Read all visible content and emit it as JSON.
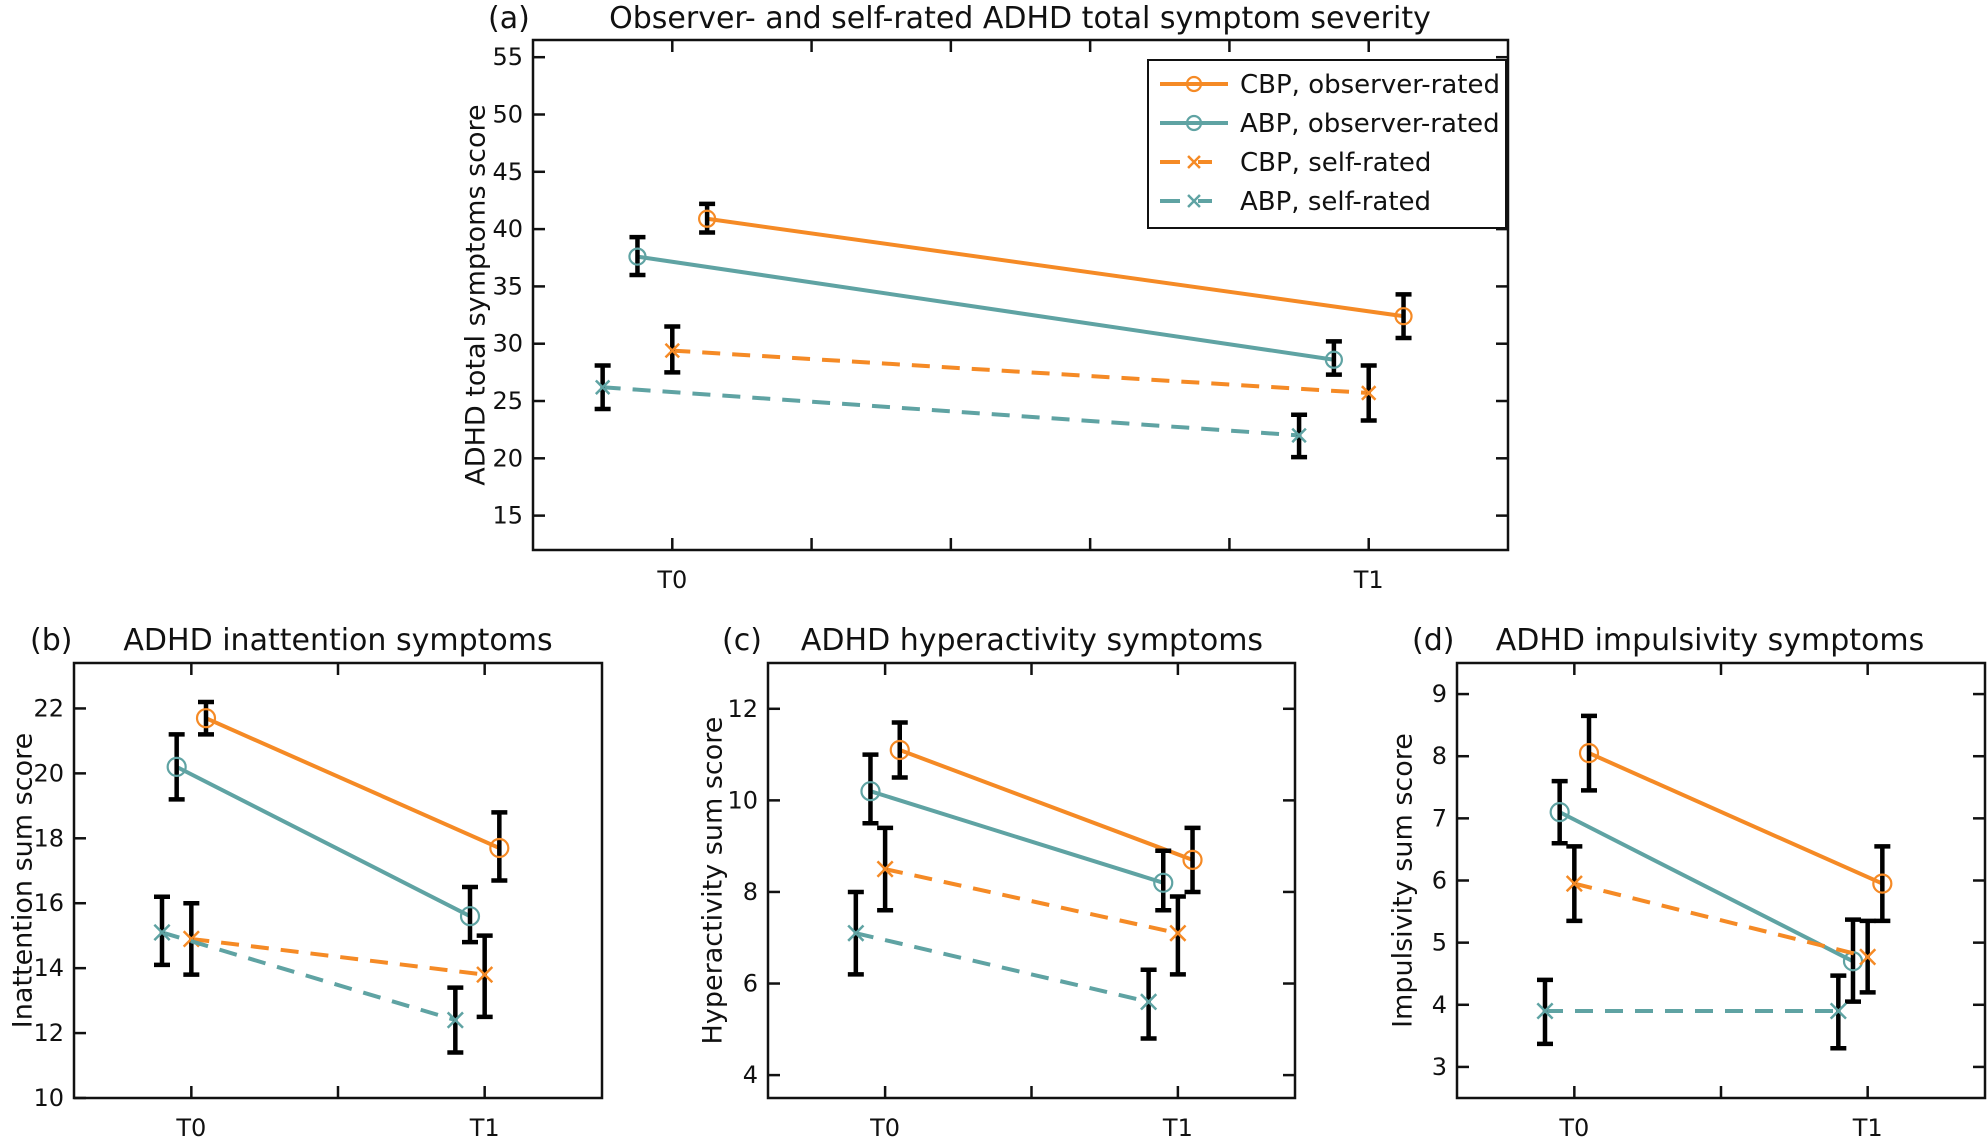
{
  "colors": {
    "CBP": "#F58A25",
    "ABP": "#5FA3A3",
    "errorbar": "#000000"
  },
  "legend": [
    {
      "label": "CBP, observer-rated",
      "group": "CBP",
      "rating": "observer",
      "marker": "circle",
      "line": "solid"
    },
    {
      "label": "ABP, observer-rated",
      "group": "ABP",
      "rating": "observer",
      "marker": "circle",
      "line": "solid"
    },
    {
      "label": "CBP, self-rated",
      "group": "CBP",
      "rating": "self",
      "marker": "x",
      "line": "dashed"
    },
    {
      "label": "ABP, self-rated",
      "group": "ABP",
      "rating": "self",
      "marker": "x",
      "line": "dashed"
    }
  ],
  "chart_data": [
    {
      "panel": "(a)",
      "type": "line",
      "title": "Observer- and self-rated ADHD total symptom severity",
      "xlabel": "",
      "ylabel": "ADHD total symptoms score",
      "categories": [
        "T0",
        "T1"
      ],
      "x_minor_ticks": 4,
      "ylim": [
        12,
        56.5
      ],
      "yticks": [
        15,
        20,
        25,
        30,
        35,
        40,
        45,
        50,
        55
      ],
      "legend_position": "top-right",
      "series": [
        {
          "name": "CBP, observer-rated",
          "values": [
            40.9,
            32.4
          ],
          "ci_low": [
            39.7,
            30.5
          ],
          "ci_high": [
            42.2,
            34.3
          ]
        },
        {
          "name": "ABP, observer-rated",
          "values": [
            37.6,
            28.6
          ],
          "ci_low": [
            36.0,
            27.3
          ],
          "ci_high": [
            39.3,
            30.2
          ]
        },
        {
          "name": "CBP, self-rated",
          "values": [
            29.4,
            25.7
          ],
          "ci_low": [
            27.5,
            23.3
          ],
          "ci_high": [
            31.5,
            28.1
          ]
        },
        {
          "name": "ABP, self-rated",
          "values": [
            26.2,
            22.0
          ],
          "ci_low": [
            24.3,
            20.1
          ],
          "ci_high": [
            28.1,
            23.8
          ]
        }
      ]
    },
    {
      "panel": "(b)",
      "type": "line",
      "title": "ADHD inattention symptoms",
      "xlabel": "",
      "ylabel": "Inattention sum score",
      "categories": [
        "T0",
        "T1"
      ],
      "x_minor_ticks": 1,
      "ylim": [
        10,
        23.4
      ],
      "yticks": [
        10,
        12,
        14,
        16,
        18,
        20,
        22
      ],
      "series": [
        {
          "name": "CBP, observer-rated",
          "values": [
            21.7,
            17.7
          ],
          "ci_low": [
            21.2,
            16.7
          ],
          "ci_high": [
            22.2,
            18.8
          ]
        },
        {
          "name": "ABP, observer-rated",
          "values": [
            20.2,
            15.6
          ],
          "ci_low": [
            19.2,
            14.8
          ],
          "ci_high": [
            21.2,
            16.5
          ]
        },
        {
          "name": "CBP, self-rated",
          "values": [
            14.9,
            13.8
          ],
          "ci_low": [
            13.8,
            12.5
          ],
          "ci_high": [
            16.0,
            15.0
          ]
        },
        {
          "name": "ABP, self-rated",
          "values": [
            15.1,
            12.4
          ],
          "ci_low": [
            14.1,
            11.4
          ],
          "ci_high": [
            16.2,
            13.4
          ]
        }
      ]
    },
    {
      "panel": "(c)",
      "type": "line",
      "title": "ADHD hyperactivity symptoms",
      "xlabel": "",
      "ylabel": "Hyperactivity sum score",
      "categories": [
        "T0",
        "T1"
      ],
      "x_minor_ticks": 1,
      "ylim": [
        3.5,
        13.0
      ],
      "yticks": [
        4,
        6,
        8,
        10,
        12
      ],
      "series": [
        {
          "name": "CBP, observer-rated",
          "values": [
            11.1,
            8.7
          ],
          "ci_low": [
            10.5,
            8.0
          ],
          "ci_high": [
            11.7,
            9.4
          ]
        },
        {
          "name": "ABP, observer-rated",
          "values": [
            10.2,
            8.2
          ],
          "ci_low": [
            9.5,
            7.6
          ],
          "ci_high": [
            11.0,
            8.9
          ]
        },
        {
          "name": "CBP, self-rated",
          "values": [
            8.5,
            7.1
          ],
          "ci_low": [
            7.6,
            6.2
          ],
          "ci_high": [
            9.4,
            7.9
          ]
        },
        {
          "name": "ABP, self-rated",
          "values": [
            7.1,
            5.6
          ],
          "ci_low": [
            6.2,
            4.8
          ],
          "ci_high": [
            8.0,
            6.3
          ]
        }
      ]
    },
    {
      "panel": "(d)",
      "type": "line",
      "title": "ADHD impulsivity symptoms",
      "xlabel": "",
      "ylabel": "Impulsivity sum score",
      "categories": [
        "T0",
        "T1"
      ],
      "x_minor_ticks": 1,
      "ylim": [
        2.5,
        9.5
      ],
      "yticks": [
        3,
        4,
        5,
        6,
        7,
        8,
        9
      ],
      "series": [
        {
          "name": "CBP, observer-rated",
          "values": [
            8.05,
            5.95
          ],
          "ci_low": [
            7.45,
            5.35
          ],
          "ci_high": [
            8.65,
            6.55
          ]
        },
        {
          "name": "ABP, observer-rated",
          "values": [
            7.1,
            4.7
          ],
          "ci_low": [
            6.6,
            4.05
          ],
          "ci_high": [
            7.6,
            5.37
          ]
        },
        {
          "name": "CBP, self-rated",
          "values": [
            5.95,
            4.77
          ],
          "ci_low": [
            5.35,
            4.2
          ],
          "ci_high": [
            6.55,
            5.35
          ]
        },
        {
          "name": "ABP, self-rated",
          "values": [
            3.9,
            3.9
          ],
          "ci_low": [
            3.37,
            3.3
          ],
          "ci_high": [
            4.4,
            4.47
          ]
        }
      ]
    }
  ]
}
